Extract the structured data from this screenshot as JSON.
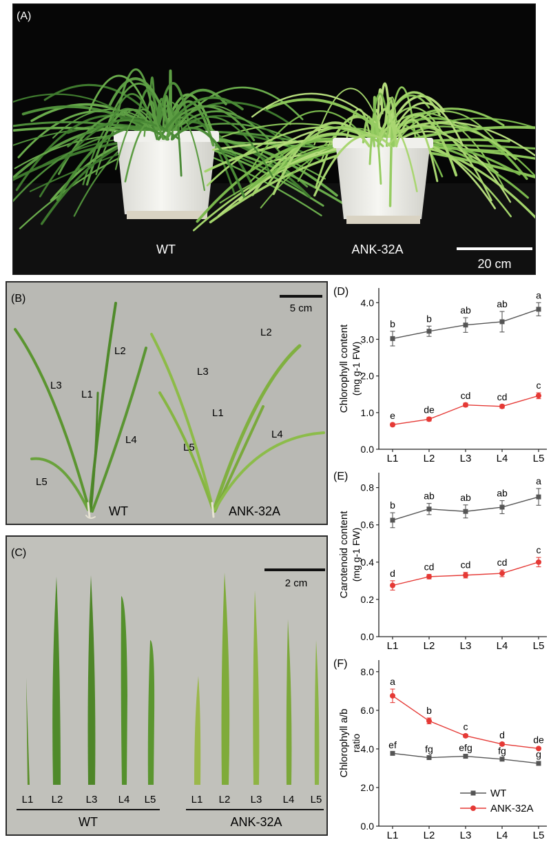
{
  "panelA": {
    "label": "(A)",
    "wt_label": "WT",
    "mutant_label": "ANK-32A",
    "scale": "20 cm"
  },
  "panelB": {
    "label": "(B)",
    "scale": "5 cm",
    "wt_label": "WT",
    "mutant_label": "ANK-32A",
    "wt_leaves": [
      "L1",
      "L2",
      "L3",
      "L4",
      "L5"
    ],
    "mutant_leaves": [
      "L1",
      "L2",
      "L3",
      "L4",
      "L5"
    ]
  },
  "panelC": {
    "label": "(C)",
    "scale": "2 cm",
    "wt_label": "WT",
    "mutant_label": "ANK-32A",
    "wt_leaves": [
      "L1",
      "L2",
      "L3",
      "L4",
      "L5"
    ],
    "mutant_leaves": [
      "L1",
      "L2",
      "L3",
      "L4",
      "L5"
    ]
  },
  "colors": {
    "wt": "#555555",
    "mutant": "#e53935",
    "leaf": "#5f9a32",
    "leaf_pale": "#9cc24d"
  },
  "chart_data": [
    {
      "type": "line",
      "panel": "(D)",
      "ylabel_line1": "Chlorophyll content",
      "ylabel_line2": "(mg g-1 FW)",
      "categories": [
        "L1",
        "L2",
        "L3",
        "L4",
        "L5"
      ],
      "ylim": [
        0,
        4.4
      ],
      "yticks": [
        "0.0",
        "1.0",
        "2.0",
        "3.0",
        "4.0"
      ],
      "series": [
        {
          "name": "WT",
          "values": [
            3.02,
            3.22,
            3.39,
            3.48,
            3.82
          ],
          "errors": [
            0.2,
            0.14,
            0.2,
            0.28,
            0.18
          ],
          "letters": [
            "b",
            "b",
            "ab",
            "ab",
            "a"
          ]
        },
        {
          "name": "ANK-32A",
          "values": [
            0.67,
            0.82,
            1.21,
            1.17,
            1.46
          ],
          "errors": [
            0.04,
            0.05,
            0.05,
            0.05,
            0.08
          ],
          "letters": [
            "e",
            "de",
            "cd",
            "cd",
            "c"
          ]
        }
      ]
    },
    {
      "type": "line",
      "panel": "(E)",
      "ylabel_line1": "Carotenoid content",
      "ylabel_line2": "(mg g-1 FW)",
      "categories": [
        "L1",
        "L2",
        "L3",
        "L4",
        "L5"
      ],
      "ylim": [
        0,
        0.88
      ],
      "yticks": [
        "0.0",
        "0.2",
        "0.4",
        "0.6",
        "0.8"
      ],
      "series": [
        {
          "name": "WT",
          "values": [
            0.625,
            0.685,
            0.672,
            0.695,
            0.75
          ],
          "errors": [
            0.04,
            0.03,
            0.035,
            0.035,
            0.045
          ],
          "letters": [
            "b",
            "ab",
            "ab",
            "ab",
            "a"
          ]
        },
        {
          "name": "ANK-32A",
          "values": [
            0.275,
            0.322,
            0.33,
            0.34,
            0.4
          ],
          "errors": [
            0.025,
            0.012,
            0.015,
            0.018,
            0.025
          ],
          "letters": [
            "d",
            "cd",
            "cd",
            "cd",
            "c"
          ]
        }
      ]
    },
    {
      "type": "line",
      "panel": "(F)",
      "ylabel_line1": "Chlorophyll a/b",
      "ylabel_line2": "ratio",
      "categories": [
        "L1",
        "L2",
        "L3",
        "L4",
        "L5"
      ],
      "ylim": [
        0,
        8.6
      ],
      "yticks": [
        "0.0",
        "2.0",
        "4.0",
        "6.0",
        "8.0"
      ],
      "legend": {
        "placement": "bottom-right",
        "entries": [
          "WT",
          "ANK-32A"
        ]
      },
      "series": [
        {
          "name": "WT",
          "values": [
            3.77,
            3.55,
            3.62,
            3.47,
            3.25
          ],
          "errors": [
            0.05,
            0.05,
            0.06,
            0.05,
            0.08
          ],
          "letters": [
            "ef",
            "fg",
            "efg",
            "fg",
            "g"
          ]
        },
        {
          "name": "ANK-32A",
          "values": [
            6.75,
            5.45,
            4.68,
            4.25,
            4.02
          ],
          "errors": [
            0.35,
            0.15,
            0.08,
            0.08,
            0.06
          ],
          "letters": [
            "a",
            "b",
            "c",
            "d",
            "de"
          ]
        }
      ]
    }
  ]
}
